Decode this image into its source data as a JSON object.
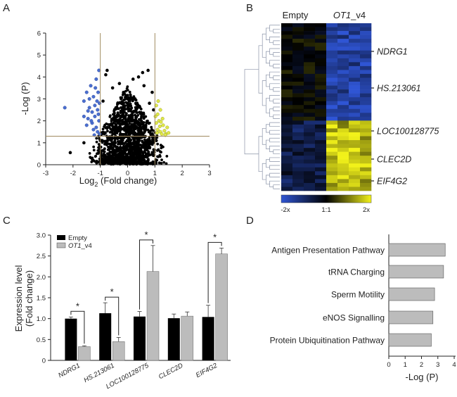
{
  "panels": {
    "a": "A",
    "b": "B",
    "c": "C",
    "d": "D"
  },
  "colors": {
    "blue": "#4a6fd0",
    "yellow": "#e0e84a",
    "black": "#000000",
    "gray": "#bcbcbc",
    "guide": "#a08a60"
  },
  "chart_data": [
    {
      "type": "scatter",
      "title": "",
      "xlabel": "Log",
      "xlabel_sub": "2",
      "xlabel_rest": " (Fold change)",
      "ylabel": "-Log (P)",
      "xlim": [
        -3,
        3
      ],
      "ylim": [
        0,
        6
      ],
      "xticks": [
        "-3",
        "-2",
        "-1",
        "0",
        "1",
        "2",
        "3"
      ],
      "yticks": [
        "0",
        "1",
        "2",
        "3",
        "4",
        "5",
        "6"
      ],
      "thresholds": {
        "fold_change": [
          -1,
          1
        ],
        "neg_log_p": 1.3
      },
      "groups": {
        "down": {
          "color": "#4a6fd0",
          "points": [
            [
              -2.3,
              2.6
            ],
            [
              -1.6,
              2.9
            ],
            [
              -1.5,
              3.3
            ],
            [
              -1.45,
              2.1
            ],
            [
              -1.4,
              3.0
            ],
            [
              -1.35,
              3.6
            ],
            [
              -1.3,
              2.4
            ],
            [
              -1.3,
              1.9
            ],
            [
              -1.25,
              3.1
            ],
            [
              -1.2,
              2.7
            ],
            [
              -1.2,
              2.2
            ],
            [
              -1.15,
              3.9
            ],
            [
              -1.15,
              1.7
            ],
            [
              -1.12,
              2.9
            ],
            [
              -1.1,
              2.5
            ],
            [
              -1.1,
              1.5
            ],
            [
              -1.08,
              3.3
            ],
            [
              -1.05,
              2.0
            ],
            [
              -1.05,
              4.3
            ],
            [
              -1.03,
              2.8
            ],
            [
              -1.02,
              1.4
            ],
            [
              -1.5,
              1.8
            ],
            [
              -1.6,
              2.2
            ],
            [
              -1.25,
              1.6
            ],
            [
              -1.4,
              2.6
            ],
            [
              -1.18,
              3.5
            ],
            [
              -1.33,
              2.0
            ],
            [
              -1.07,
              2.3
            ],
            [
              -1.22,
              1.35
            ],
            [
              -1.45,
              2.45
            ]
          ]
        },
        "up": {
          "color": "#e0e84a",
          "points": [
            [
              1.05,
              2.7
            ],
            [
              1.1,
              2.3
            ],
            [
              1.1,
              1.6
            ],
            [
              1.15,
              2.0
            ],
            [
              1.2,
              1.5
            ],
            [
              1.2,
              2.5
            ],
            [
              1.25,
              1.4
            ],
            [
              1.3,
              1.8
            ],
            [
              1.35,
              1.55
            ],
            [
              1.4,
              1.4
            ],
            [
              1.45,
              1.7
            ],
            [
              1.5,
              1.45
            ],
            [
              1.05,
              1.9
            ],
            [
              1.08,
              1.45
            ],
            [
              1.12,
              2.9
            ],
            [
              1.18,
              1.75
            ],
            [
              1.28,
              2.1
            ],
            [
              1.02,
              2.2
            ],
            [
              1.38,
              1.35
            ],
            [
              1.22,
              1.95
            ]
          ]
        },
        "outliers_ns": {
          "color": "#000000",
          "points": [
            [
              -2.1,
              0.55
            ],
            [
              -1.6,
              1.0
            ],
            [
              -0.8,
              4.1
            ],
            [
              -0.75,
              4.3
            ],
            [
              0.75,
              4.3
            ],
            [
              0.55,
              4.2
            ],
            [
              0.2,
              3.9
            ],
            [
              -0.3,
              3.7
            ],
            [
              0.9,
              3.3
            ],
            [
              -0.9,
              2.9
            ],
            [
              0.95,
              2.5
            ],
            [
              -1.0,
              1.1
            ],
            [
              1.05,
              1.1
            ],
            [
              0.6,
              3.6
            ],
            [
              -0.55,
              3.5
            ],
            [
              0.4,
              4.0
            ],
            [
              -0.15,
              3.3
            ],
            [
              0.8,
              2.8
            ]
          ]
        }
      }
    },
    {
      "type": "heatmap",
      "column_groups": [
        "Empty",
        "OT1_v4"
      ],
      "column_group_display": [
        "Empty",
        "OT1",
        "_v4"
      ],
      "columns_per_group": 4,
      "clusters": [
        {
          "name": "downregulated in OT1_v4",
          "rows": 25,
          "empty_level": 0.0,
          "ot1_level": -1.0
        },
        {
          "name": "upregulated in OT1_v4",
          "rows": 18,
          "empty_level": -0.4,
          "ot1_level": 1.0
        }
      ],
      "labeled_genes": [
        "NDRG1",
        "HS.213061",
        "LOC100128775",
        "CLEC2D",
        "EIF4G2"
      ],
      "colorbar": {
        "labels": [
          "-2x",
          "1:1",
          "2x"
        ],
        "colors": [
          "#2f55d4",
          "#000000",
          "#f2f21a"
        ]
      }
    },
    {
      "type": "bar",
      "categories": [
        "NDRG1",
        "HS.213061",
        "LOC100128775",
        "CLEC2D",
        "EIF4G2"
      ],
      "series": [
        {
          "name": "Empty",
          "color": "#000000",
          "values": [
            1.0,
            1.13,
            1.05,
            1.01,
            1.04
          ],
          "errors": [
            0.04,
            0.25,
            0.12,
            0.1,
            0.28
          ]
        },
        {
          "name": "OT1_v4",
          "name_display": [
            "OT1",
            "_v4"
          ],
          "color": "#bcbcbc",
          "values": [
            0.33,
            0.45,
            2.13,
            1.06,
            2.55
          ],
          "errors": [
            0.02,
            0.1,
            0.62,
            0.1,
            0.14
          ]
        }
      ],
      "significance": [
        true,
        true,
        true,
        false,
        true
      ],
      "sig_mark": "*",
      "xlabel": "",
      "ylabel": [
        "Expression level",
        "(Fold change)"
      ],
      "ylim": [
        0,
        3.0
      ],
      "yticks": [
        "0",
        "0.5",
        "1.0",
        "1.5",
        "2.0",
        "2.5",
        "3.0"
      ]
    },
    {
      "type": "bar",
      "orientation": "horizontal",
      "categories": [
        "Antigen Presentation Pathway",
        "tRNA Charging",
        "Sperm Motility",
        "eNOS Signalling",
        "Protein Ubiquitination Pathway"
      ],
      "values": [
        3.45,
        3.35,
        2.8,
        2.7,
        2.6
      ],
      "color": "#bcbcbc",
      "xlabel": "-Log (P)",
      "xlim": [
        0,
        4
      ],
      "xticks": [
        "0",
        "1",
        "2",
        "3",
        "4"
      ]
    }
  ]
}
